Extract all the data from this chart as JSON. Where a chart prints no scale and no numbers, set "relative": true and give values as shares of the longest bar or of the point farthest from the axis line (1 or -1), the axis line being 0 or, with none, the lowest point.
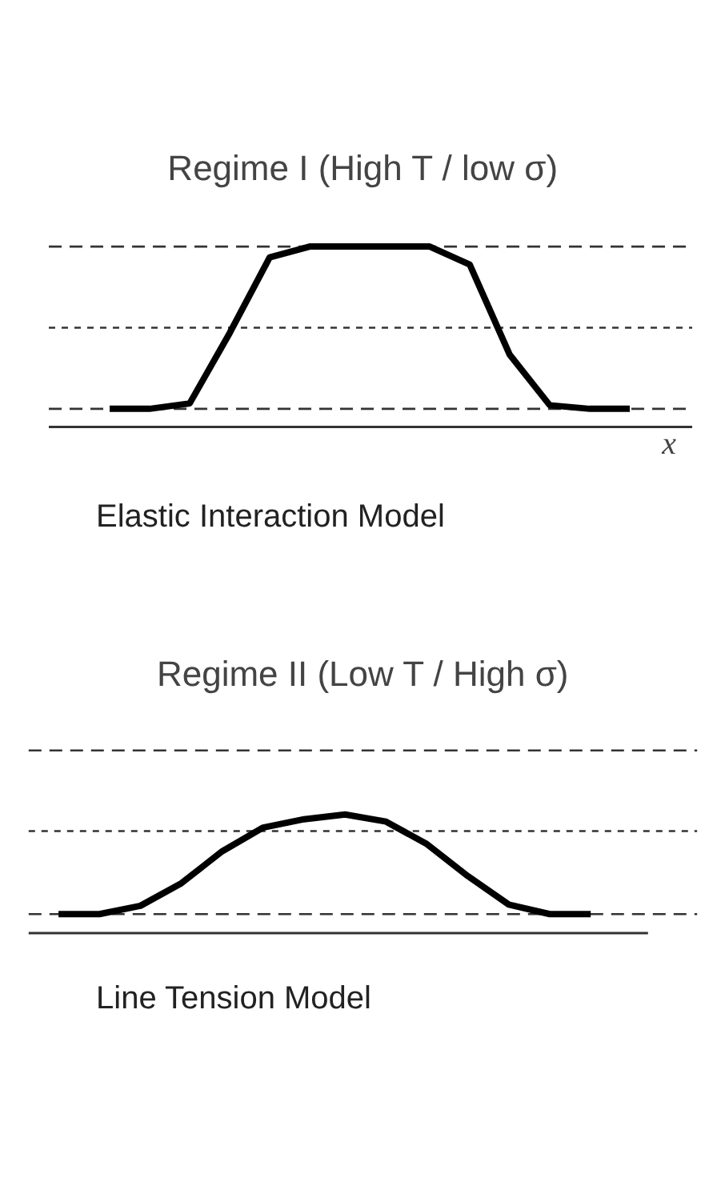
{
  "chart_data": [
    {
      "type": "line",
      "title": "Regime I (High T / low σ)",
      "xlabel": "x",
      "relative": true,
      "color": "#000000",
      "categories": [
        null,
        null,
        null,
        null,
        null,
        null,
        null,
        null,
        null,
        null,
        null,
        null,
        null,
        null
      ],
      "values": [
        0.1,
        0.1,
        0.13,
        0.52,
        0.94,
        1,
        1,
        1,
        1,
        0.9,
        0.4,
        0.12,
        0.1,
        0.1
      ],
      "ref_lines": [
        {
          "axis": "y",
          "value": 1,
          "line_style": "dashed"
        },
        {
          "axis": "y",
          "value": 0.55,
          "line_style": "dotted"
        },
        {
          "axis": "y",
          "value": 0.1,
          "line_style": "dashed"
        }
      ],
      "annotations": [
        "Elastic Interaction Model"
      ]
    },
    {
      "type": "line",
      "title": "Regime II (Low T / High σ)",
      "relative": true,
      "color": "#000000",
      "categories": [
        null,
        null,
        null,
        null,
        null,
        null,
        null,
        null,
        null,
        null,
        null,
        null,
        null,
        null
      ],
      "values": [
        0.16,
        0.16,
        0.23,
        0.42,
        0.69,
        0.89,
        0.96,
        1,
        0.94,
        0.75,
        0.48,
        0.24,
        0.16,
        0.16
      ],
      "ref_lines": [
        {
          "axis": "y",
          "value": 1.54,
          "line_style": "dashed"
        },
        {
          "axis": "y",
          "value": 0.86,
          "line_style": "dotted"
        },
        {
          "axis": "y",
          "value": 0.16,
          "line_style": "dashed"
        }
      ],
      "annotations": [
        "Line Tension Model"
      ]
    }
  ]
}
